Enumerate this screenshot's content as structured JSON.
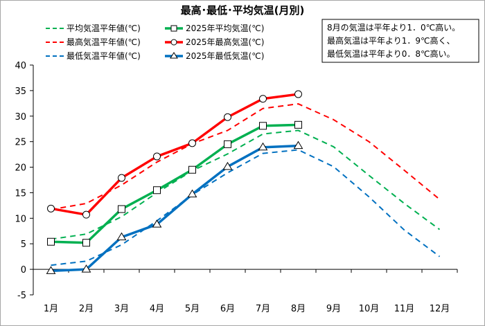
{
  "chart_data": {
    "type": "line",
    "title": "最高･最低･平均気温(月別)",
    "categories": [
      "1月",
      "2月",
      "3月",
      "4月",
      "5月",
      "6月",
      "7月",
      "8月",
      "9月",
      "10月",
      "11月",
      "12月"
    ],
    "ylim": [
      -5,
      40
    ],
    "yticks": [
      -5,
      0,
      5,
      10,
      15,
      20,
      25,
      30,
      35,
      40
    ],
    "grid": false,
    "legend_position": "top-left",
    "series": [
      {
        "name": "平均気温平年値(℃)",
        "kind": "normal",
        "color": "#00b050",
        "values": [
          5.9,
          6.9,
          10.3,
          15.0,
          19.3,
          22.6,
          26.5,
          27.2,
          24.0,
          18.4,
          12.9,
          7.8
        ]
      },
      {
        "name": "2025年平均気温(℃)",
        "kind": "actual",
        "color": "#00b050",
        "marker": "square",
        "values": [
          5.4,
          5.2,
          11.8,
          15.5,
          19.5,
          24.5,
          28.1,
          28.3,
          null,
          null,
          null,
          null
        ]
      },
      {
        "name": "最高気温平年値(℃)",
        "kind": "normal",
        "color": "#ff0000",
        "values": [
          11.7,
          12.9,
          16.5,
          21.0,
          24.6,
          27.2,
          31.5,
          32.4,
          29.3,
          25.0,
          19.4,
          13.7
        ]
      },
      {
        "name": "2025年最高気温(℃)",
        "kind": "actual",
        "color": "#ff0000",
        "marker": "circle",
        "values": [
          11.9,
          10.7,
          17.9,
          22.1,
          24.7,
          29.8,
          33.4,
          34.3,
          null,
          null,
          null,
          null
        ]
      },
      {
        "name": "最低気温平年値(℃)",
        "kind": "normal",
        "color": "#0070c0",
        "values": [
          0.8,
          1.6,
          4.8,
          9.5,
          14.6,
          18.9,
          22.7,
          23.4,
          20.1,
          14.2,
          7.7,
          2.5
        ]
      },
      {
        "name": "2025年最低気温(℃)",
        "kind": "actual",
        "color": "#0070c0",
        "marker": "triangle",
        "values": [
          -0.3,
          0.0,
          6.3,
          8.8,
          14.7,
          20.1,
          23.9,
          24.2,
          null,
          null,
          null,
          null
        ]
      }
    ],
    "note_lines": [
      "8月の気温は平年より1．0℃高い。",
      "最高気温は平年より1．9℃高く、",
      "最低気温は平年より0．8℃高い。"
    ]
  }
}
